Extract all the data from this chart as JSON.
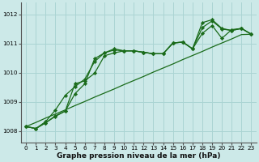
{
  "xlabel": "Graphe pression niveau de la mer (hPa)",
  "background_color": "#cce9e8",
  "grid_color": "#aad4d3",
  "line_color": "#1a6b1a",
  "marker_color": "#1a6b1a",
  "ylim": [
    1007.6,
    1012.4
  ],
  "xlim": [
    -0.5,
    23.5
  ],
  "yticks": [
    1008,
    1009,
    1010,
    1011,
    1012
  ],
  "xticks": [
    0,
    1,
    2,
    3,
    4,
    5,
    6,
    7,
    8,
    9,
    10,
    11,
    12,
    13,
    14,
    15,
    16,
    17,
    18,
    19,
    20,
    21,
    22,
    23
  ],
  "series1": [
    1008.15,
    1008.08,
    1008.28,
    1008.5,
    1008.68,
    1009.62,
    1009.72,
    1009.98,
    1010.58,
    1010.68,
    1010.75,
    1010.75,
    1010.7,
    1010.65,
    1010.65,
    1011.02,
    1011.05,
    1010.82,
    1011.35,
    1011.62,
    1011.18,
    1011.48,
    1011.52,
    1011.32
  ],
  "series2": [
    1008.15,
    1008.08,
    1008.32,
    1008.72,
    1009.22,
    1009.52,
    1009.78,
    1010.38,
    1010.68,
    1010.78,
    1010.75,
    1010.75,
    1010.7,
    1010.65,
    1010.65,
    1011.02,
    1011.05,
    1010.82,
    1011.55,
    1011.78,
    1011.5,
    1011.45,
    1011.52,
    1011.32
  ],
  "series3": [
    1008.15,
    1008.08,
    1008.28,
    1008.52,
    1008.68,
    1009.28,
    1009.62,
    1010.48,
    1010.68,
    1010.82,
    1010.75,
    1010.75,
    1010.7,
    1010.65,
    1010.65,
    1011.02,
    1011.05,
    1010.82,
    1011.72,
    1011.82,
    1011.52,
    1011.45,
    1011.52,
    1011.32
  ],
  "series_diag": [
    1008.15,
    1008.29,
    1008.44,
    1008.58,
    1008.72,
    1008.87,
    1009.01,
    1009.16,
    1009.3,
    1009.44,
    1009.59,
    1009.73,
    1009.87,
    1010.02,
    1010.16,
    1010.3,
    1010.45,
    1010.59,
    1010.73,
    1010.88,
    1011.02,
    1011.16,
    1011.31,
    1011.32
  ],
  "xlabel_fontsize": 6.5,
  "xlabel_fontweight": "bold",
  "tick_labelsize": 5.2,
  "linewidth": 0.9,
  "markersize": 2.2
}
